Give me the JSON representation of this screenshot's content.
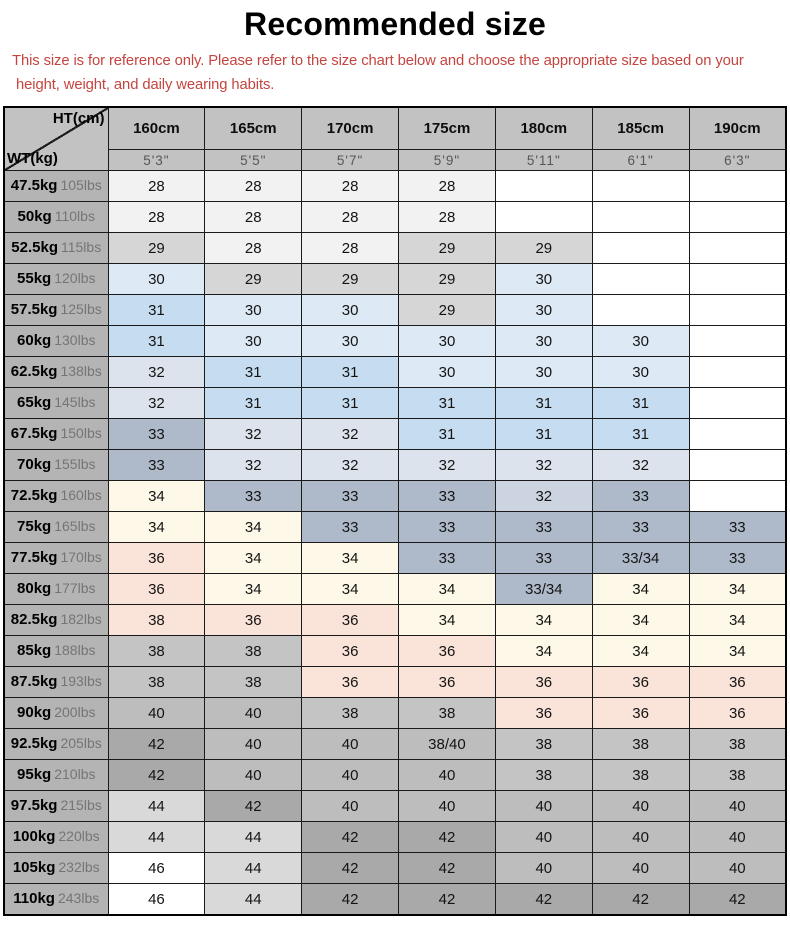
{
  "title": "Recommended size",
  "disclaimer_lines": [
    "This size is for reference only. Please refer to the size chart below and choose the appropriate size based on your",
    "height, weight, and daily wearing habits."
  ],
  "chart_data": {
    "type": "table",
    "title": "Recommended size",
    "corner": {
      "top": "HT(cm)",
      "bottom": "WT(kg)"
    },
    "columns_height_cm": [
      "160cm",
      "165cm",
      "170cm",
      "175cm",
      "180cm",
      "185cm",
      "190cm"
    ],
    "columns_height_ftin": [
      "5'3\"",
      "5'5\"",
      "5'7\"",
      "5'9\"",
      "5'11\"",
      "6'1\"",
      "6'3\""
    ],
    "rows": [
      {
        "weight_kg": "47.5kg",
        "weight_lbs": "105lbs",
        "sizes": [
          "28",
          "28",
          "28",
          "28",
          "",
          "",
          ""
        ],
        "cell_colors": [
          "s28",
          "s28",
          "s28",
          "s28",
          "e",
          "e",
          "e"
        ]
      },
      {
        "weight_kg": "50kg",
        "weight_lbs": "110lbs",
        "sizes": [
          "28",
          "28",
          "28",
          "28",
          "",
          "",
          ""
        ],
        "cell_colors": [
          "s28",
          "s28",
          "s28",
          "s28",
          "e",
          "e",
          "e"
        ]
      },
      {
        "weight_kg": "52.5kg",
        "weight_lbs": "115lbs",
        "sizes": [
          "29",
          "28",
          "28",
          "29",
          "29",
          "",
          ""
        ],
        "cell_colors": [
          "s29",
          "s28",
          "s28",
          "s29",
          "s29",
          "e",
          "e"
        ]
      },
      {
        "weight_kg": "55kg",
        "weight_lbs": "120lbs",
        "sizes": [
          "30",
          "29",
          "29",
          "29",
          "30",
          "",
          ""
        ],
        "cell_colors": [
          "s30",
          "s29",
          "s29",
          "s29",
          "s30",
          "e",
          "e"
        ]
      },
      {
        "weight_kg": "57.5kg",
        "weight_lbs": "125lbs",
        "sizes": [
          "31",
          "30",
          "30",
          "29",
          "30",
          "",
          ""
        ],
        "cell_colors": [
          "s31",
          "s30",
          "s30",
          "s29",
          "s30",
          "e",
          "e"
        ]
      },
      {
        "weight_kg": "60kg",
        "weight_lbs": "130lbs",
        "sizes": [
          "31",
          "30",
          "30",
          "30",
          "30",
          "30",
          ""
        ],
        "cell_colors": [
          "s31",
          "s30",
          "s30",
          "s30",
          "s30",
          "s30",
          "e"
        ]
      },
      {
        "weight_kg": "62.5kg",
        "weight_lbs": "138lbs",
        "sizes": [
          "32",
          "31",
          "31",
          "30",
          "30",
          "30",
          ""
        ],
        "cell_colors": [
          "s32",
          "s31",
          "s31",
          "s30",
          "s30",
          "s30",
          "e"
        ]
      },
      {
        "weight_kg": "65kg",
        "weight_lbs": "145lbs",
        "sizes": [
          "32",
          "31",
          "31",
          "31",
          "31",
          "31",
          ""
        ],
        "cell_colors": [
          "s32",
          "s31",
          "s31",
          "s31",
          "s31",
          "s31",
          "e"
        ]
      },
      {
        "weight_kg": "67.5kg",
        "weight_lbs": "150lbs",
        "sizes": [
          "33",
          "32",
          "32",
          "31",
          "31",
          "31",
          ""
        ],
        "cell_colors": [
          "s33",
          "s32",
          "s32",
          "s31",
          "s31",
          "s31",
          "e"
        ]
      },
      {
        "weight_kg": "70kg",
        "weight_lbs": "155lbs",
        "sizes": [
          "33",
          "32",
          "32",
          "32",
          "32",
          "32",
          ""
        ],
        "cell_colors": [
          "s33",
          "s32",
          "s32",
          "s32",
          "s32",
          "s32",
          "e"
        ]
      },
      {
        "weight_kg": "72.5kg",
        "weight_lbs": "160lbs",
        "sizes": [
          "34",
          "33",
          "33",
          "33",
          "32",
          "33",
          ""
        ],
        "cell_colors": [
          "s34",
          "s33",
          "s33",
          "s33",
          "s32b",
          "s33",
          "e"
        ]
      },
      {
        "weight_kg": "75kg",
        "weight_lbs": "165lbs",
        "sizes": [
          "34",
          "34",
          "33",
          "33",
          "33",
          "33",
          "33"
        ],
        "cell_colors": [
          "s34",
          "s34",
          "s33",
          "s33",
          "s33",
          "s33",
          "s33"
        ]
      },
      {
        "weight_kg": "77.5kg",
        "weight_lbs": "170lbs",
        "sizes": [
          "36",
          "34",
          "34",
          "33",
          "33",
          "33/34",
          "33"
        ],
        "cell_colors": [
          "s36",
          "s34",
          "s34",
          "s33",
          "s33",
          "s33",
          "s33"
        ]
      },
      {
        "weight_kg": "80kg",
        "weight_lbs": "177lbs",
        "sizes": [
          "36",
          "34",
          "34",
          "34",
          "33/34",
          "34",
          "34"
        ],
        "cell_colors": [
          "s36",
          "s34",
          "s34",
          "s34",
          "s33",
          "s34",
          "s34"
        ]
      },
      {
        "weight_kg": "82.5kg",
        "weight_lbs": "182lbs",
        "sizes": [
          "38",
          "36",
          "36",
          "34",
          "34",
          "34",
          "34"
        ],
        "cell_colors": [
          "s36",
          "s36",
          "s36",
          "s34",
          "s34",
          "s34",
          "s34"
        ]
      },
      {
        "weight_kg": "85kg",
        "weight_lbs": "188lbs",
        "sizes": [
          "38",
          "38",
          "36",
          "36",
          "34",
          "34",
          "34"
        ],
        "cell_colors": [
          "s38",
          "s38",
          "s36",
          "s36",
          "s34",
          "s34",
          "s34"
        ]
      },
      {
        "weight_kg": "87.5kg",
        "weight_lbs": "193lbs",
        "sizes": [
          "38",
          "38",
          "36",
          "36",
          "36",
          "36",
          "36"
        ],
        "cell_colors": [
          "s38",
          "s38",
          "s36",
          "s36",
          "s36",
          "s36",
          "s36"
        ]
      },
      {
        "weight_kg": "90kg",
        "weight_lbs": "200lbs",
        "sizes": [
          "40",
          "40",
          "38",
          "38",
          "36",
          "36",
          "36"
        ],
        "cell_colors": [
          "s40",
          "s40",
          "s38",
          "s38",
          "s36",
          "s36",
          "s36"
        ]
      },
      {
        "weight_kg": "92.5kg",
        "weight_lbs": "205lbs",
        "sizes": [
          "42",
          "40",
          "40",
          "38/40",
          "38",
          "38",
          "38"
        ],
        "cell_colors": [
          "s42",
          "s40",
          "s40",
          "s40",
          "s38",
          "s38",
          "s38"
        ]
      },
      {
        "weight_kg": "95kg",
        "weight_lbs": "210lbs",
        "sizes": [
          "42",
          "40",
          "40",
          "40",
          "38",
          "38",
          "38"
        ],
        "cell_colors": [
          "s42",
          "s40",
          "s40",
          "s40",
          "s38",
          "s38",
          "s38"
        ]
      },
      {
        "weight_kg": "97.5kg",
        "weight_lbs": "215lbs",
        "sizes": [
          "44",
          "42",
          "40",
          "40",
          "40",
          "40",
          "40"
        ],
        "cell_colors": [
          "s44",
          "s42",
          "s40",
          "s40",
          "s40",
          "s40",
          "s40"
        ]
      },
      {
        "weight_kg": "100kg",
        "weight_lbs": "220lbs",
        "sizes": [
          "44",
          "44",
          "42",
          "42",
          "40",
          "40",
          "40"
        ],
        "cell_colors": [
          "s44",
          "s44",
          "s42",
          "s42",
          "s40",
          "s40",
          "s40"
        ]
      },
      {
        "weight_kg": "105kg",
        "weight_lbs": "232lbs",
        "sizes": [
          "46",
          "44",
          "42",
          "42",
          "40",
          "40",
          "40"
        ],
        "cell_colors": [
          "s46",
          "s44",
          "s42",
          "s42",
          "s40",
          "s40",
          "s40"
        ]
      },
      {
        "weight_kg": "110kg",
        "weight_lbs": "243lbs",
        "sizes": [
          "46",
          "44",
          "42",
          "42",
          "42",
          "42",
          "42"
        ],
        "cell_colors": [
          "s46",
          "s44",
          "s42",
          "s42",
          "s42",
          "s42",
          "s42"
        ]
      }
    ]
  },
  "palette": {
    "e": "#ffffff",
    "s28": "#f2f2f2",
    "s29": "#d6d6d6",
    "s30": "#dde9f5",
    "s31": "#c6dcf0",
    "s32": "#dde3ec",
    "s32b": "#ccd4e2",
    "s33": "#aeb9ca",
    "s34": "#fdf8e7",
    "s36": "#fae3d9",
    "s38": "#c4c4c4",
    "s40": "#bdbdbd",
    "s42": "#a9a9a9",
    "s44": "#d9d9d9",
    "s46": "#ffffff"
  },
  "style": {
    "accent_red": "#c5443f",
    "header_bg": "#c2c2c2",
    "label_bg": "#b4b4b4",
    "border": "#1a1a1a",
    "lbs_text": "#757575",
    "ftin_text": "#575757"
  }
}
